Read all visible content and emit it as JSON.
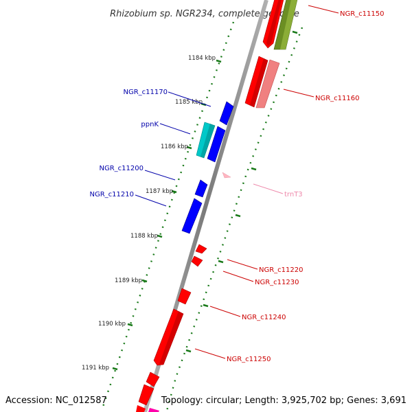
{
  "title": "Rhizobium sp. NGR234, complete genome",
  "footer": {
    "accession": "Accession: NC_012587",
    "summary": "Topology: circular; Length: 3,925,702 bp; Genes: 3,691"
  },
  "colors": {
    "backbone": "#888888",
    "cds_forward": "#ff0000",
    "cds_reverse": "#0000ff",
    "cds_light_red": "#f08080",
    "cds_olive": "#6b8e23",
    "cds_cyan": "#00c8c8",
    "trna": "#ffb6c1",
    "tick": "#1a7a1a",
    "label_red": "#cc0000",
    "label_blue": "#0000aa",
    "label_pink": "#ee88aa"
  },
  "ticks": [
    {
      "label": "1184 kbp"
    },
    {
      "label": "1185 kbp"
    },
    {
      "label": "1186 kbp"
    },
    {
      "label": "1187 kbp"
    },
    {
      "label": "1188 kbp"
    },
    {
      "label": "1189 kbp"
    },
    {
      "label": "1190 kbp"
    },
    {
      "label": "1191 kbp"
    }
  ],
  "genes": [
    {
      "label": "NGR_c11150"
    },
    {
      "label": "NGR_c11160"
    },
    {
      "label": "NGR_c11170"
    },
    {
      "label": "ppnK"
    },
    {
      "label": "NGR_c11200"
    },
    {
      "label": "NGR_c11210"
    },
    {
      "label": "trnT3"
    },
    {
      "label": "NGR_c11220"
    },
    {
      "label": "NGR_c11230"
    },
    {
      "label": "NGR_c11240"
    },
    {
      "label": "NGR_c11250"
    }
  ]
}
